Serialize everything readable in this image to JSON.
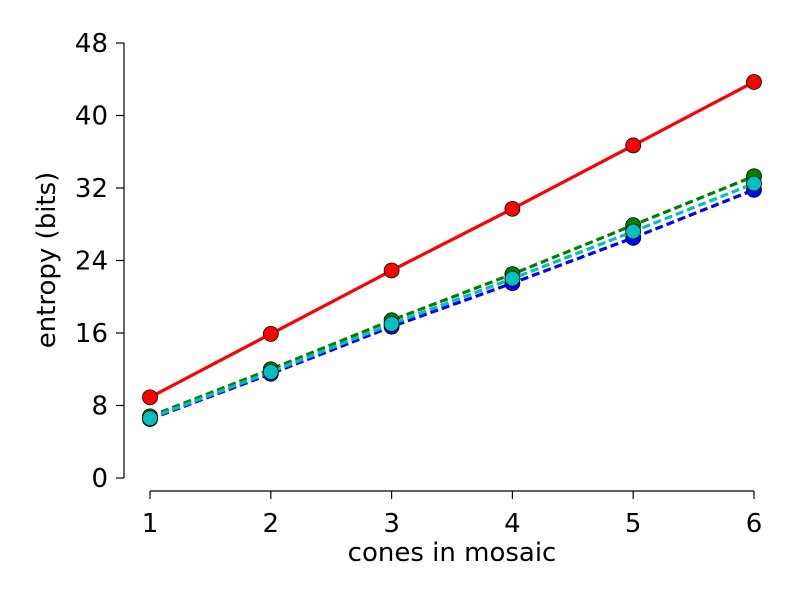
{
  "chart_data": {
    "type": "line",
    "title": "",
    "xlabel": "cones in mosaic",
    "ylabel": "entropy (bits)",
    "x": [
      1,
      2,
      3,
      4,
      5,
      6
    ],
    "xlim": [
      1,
      6
    ],
    "ylim": [
      0,
      48
    ],
    "xticks": [
      "1",
      "2",
      "3",
      "4",
      "5",
      "6"
    ],
    "yticks": [
      "0",
      "8",
      "16",
      "24",
      "32",
      "40",
      "48"
    ],
    "grid": false,
    "legend": "none",
    "series": [
      {
        "color": "#0000ff",
        "style": "dashed",
        "values": [
          6.5,
          11.5,
          16.7,
          21.5,
          26.5,
          31.8
        ]
      },
      {
        "color": "#008000",
        "style": "dashed",
        "values": [
          6.8,
          12.0,
          17.4,
          22.5,
          27.9,
          33.3
        ]
      },
      {
        "color": "#00bfbf",
        "style": "dashed",
        "values": [
          6.6,
          11.7,
          17.0,
          22.0,
          27.2,
          32.5
        ]
      },
      {
        "color": "#ff0000",
        "style": "solid",
        "values": [
          8.9,
          15.9,
          22.9,
          29.7,
          36.7,
          43.7
        ]
      }
    ]
  }
}
